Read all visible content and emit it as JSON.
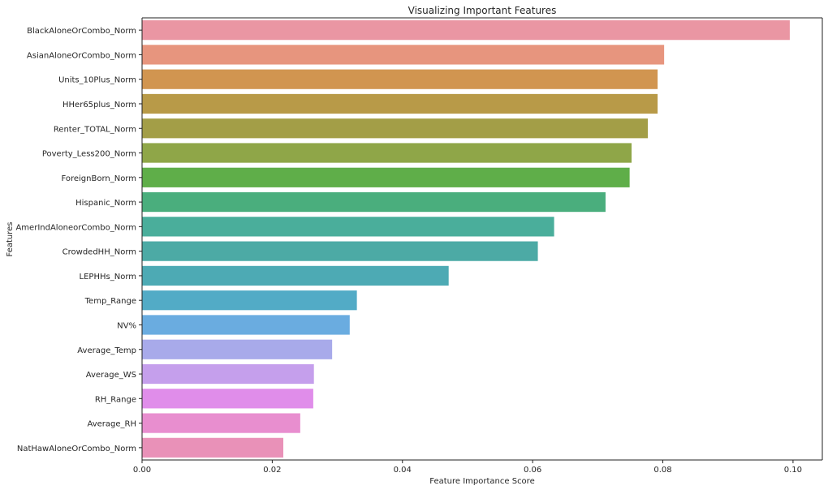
{
  "chart_data": {
    "type": "bar",
    "orientation": "horizontal",
    "title": "Visualizing Important Features",
    "xlabel": "Feature Importance Score",
    "ylabel": "Features",
    "xlim": [
      0,
      0.1045
    ],
    "xticks": [
      "0.00",
      "0.02",
      "0.04",
      "0.06",
      "0.08",
      "0.10"
    ],
    "grid": false,
    "categories": [
      "BlackAloneOrCombo_Norm",
      "AsianAloneOrCombo_Norm",
      "Units_10Plus_Norm",
      "HHer65plus_Norm",
      "Renter_TOTAL_Norm",
      "Poverty_Less200_Norm",
      "ForeignBorn_Norm",
      "Hispanic_Norm",
      "AmerIndAloneorCombo_Norm",
      "CrowdedHH_Norm",
      "LEPHHs_Norm",
      "Temp_Range",
      "NV%",
      "Average_Temp",
      "Average_WS",
      "RH_Range",
      "Average_RH",
      "NatHawAloneOrCombo_Norm"
    ],
    "values": [
      0.0995,
      0.0802,
      0.0792,
      0.0792,
      0.0777,
      0.0752,
      0.0749,
      0.0712,
      0.0633,
      0.0608,
      0.0471,
      0.033,
      0.0319,
      0.0292,
      0.0264,
      0.0263,
      0.0243,
      0.0217
    ],
    "colors": [
      "#ea96a3",
      "#e7957e",
      "#d19550",
      "#b89a48",
      "#a39e47",
      "#8fa648",
      "#5fae49",
      "#4aae7d",
      "#4aae9b",
      "#4caaa5",
      "#4daab4",
      "#52abc6",
      "#6aace0",
      "#a8aaea",
      "#c59fec",
      "#e08dea",
      "#e88ecf",
      "#e991b8"
    ]
  }
}
